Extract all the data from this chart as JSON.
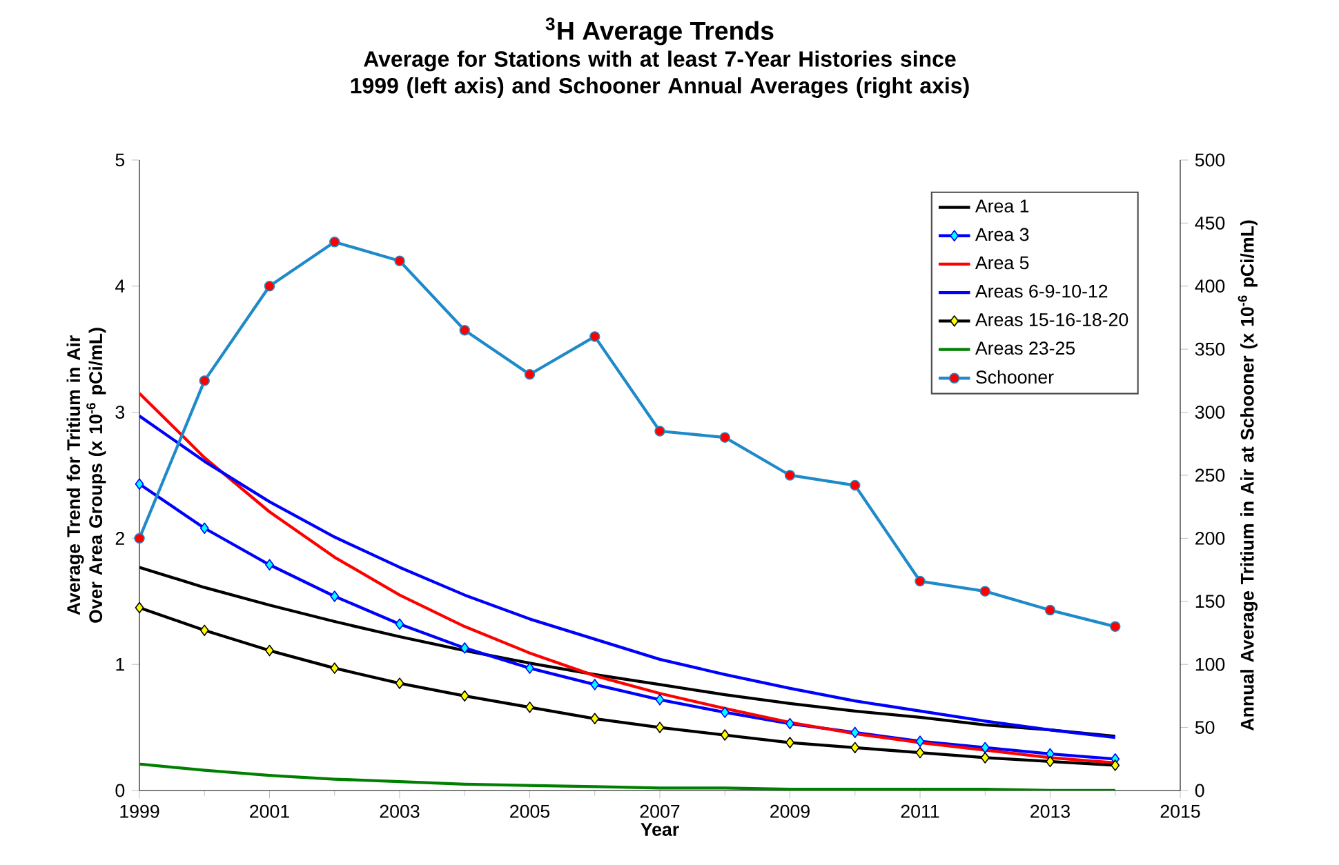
{
  "chart_data": {
    "type": "line",
    "title": "$^{3}$H Average Trends",
    "subtitle": "Average for Stations with at least 7-Year Histories since 1999 (left axis) and Schooner Annual Averages (right axis)",
    "xlabel": "Year",
    "ylabel": "Average Trend for Tritium in Air Over Area Groups (x 10$^{-6}$ pCi/mL)",
    "y2label": "Annual Average Tritium in Air at Schooner (x 10$^{-6}$ pCi/mL)",
    "x": [
      1999,
      2000,
      2001,
      2002,
      2003,
      2004,
      2005,
      2006,
      2007,
      2008,
      2009,
      2010,
      2011,
      2012,
      2013,
      2014
    ],
    "series": [
      {
        "name": "Area 1",
        "color": "#000000",
        "marker": "none",
        "values": [
          1.77,
          1.61,
          1.47,
          1.34,
          1.22,
          1.11,
          1.01,
          0.92,
          0.84,
          0.76,
          0.69,
          0.63,
          0.58,
          0.52,
          0.48,
          0.43
        ]
      },
      {
        "name": "Area 3",
        "color": "#0000ff",
        "marker": "diamond",
        "values": [
          2.43,
          2.08,
          1.79,
          1.54,
          1.32,
          1.13,
          0.97,
          0.84,
          0.72,
          0.62,
          0.53,
          0.46,
          0.39,
          0.34,
          0.29,
          0.25
        ]
      },
      {
        "name": "Area 5",
        "color": "#ff0000",
        "marker": "none",
        "values": [
          3.15,
          2.64,
          2.21,
          1.85,
          1.55,
          1.3,
          1.09,
          0.91,
          0.77,
          0.65,
          0.54,
          0.45,
          0.38,
          0.32,
          0.26,
          0.22
        ]
      },
      {
        "name": "Areas 6-9-10-12",
        "color": "#0000ff",
        "marker": "none",
        "values": [
          2.97,
          2.61,
          2.29,
          2.01,
          1.77,
          1.55,
          1.36,
          1.2,
          1.04,
          0.92,
          0.81,
          0.71,
          0.63,
          0.55,
          0.48,
          0.42
        ]
      },
      {
        "name": "Areas 15-16-18-20",
        "color": "#000000",
        "marker": "diamond",
        "values": [
          1.45,
          1.27,
          1.11,
          0.97,
          0.85,
          0.75,
          0.66,
          0.57,
          0.5,
          0.44,
          0.38,
          0.34,
          0.3,
          0.26,
          0.23,
          0.2
        ]
      },
      {
        "name": "Areas 23-25",
        "color": "#008000",
        "marker": "none",
        "values": [
          0.21,
          0.16,
          0.12,
          0.09,
          0.07,
          0.05,
          0.04,
          0.03,
          0.02,
          0.02,
          0.01,
          0.01,
          0.01,
          0.01,
          0.0,
          0.0
        ]
      },
      {
        "name": "Schooner",
        "color": "#1f8ac9",
        "marker": "circle",
        "axis": "y2",
        "values": [
          200,
          325,
          400,
          435,
          420,
          365,
          330,
          360,
          285,
          280,
          250,
          242,
          166,
          158,
          143,
          130
        ]
      }
    ],
    "xlim": [
      1999,
      2015
    ],
    "xticks": [
      1999,
      2001,
      2003,
      2005,
      2007,
      2009,
      2011,
      2013,
      2015
    ],
    "ylim": [
      0,
      5
    ],
    "yticks": [
      0,
      1,
      2,
      3,
      4,
      5
    ],
    "y2lim": [
      0,
      500
    ],
    "y2ticks": [
      0,
      50,
      100,
      150,
      200,
      250,
      300,
      350,
      400,
      450,
      500
    ],
    "grid": false,
    "legend": "top right"
  }
}
